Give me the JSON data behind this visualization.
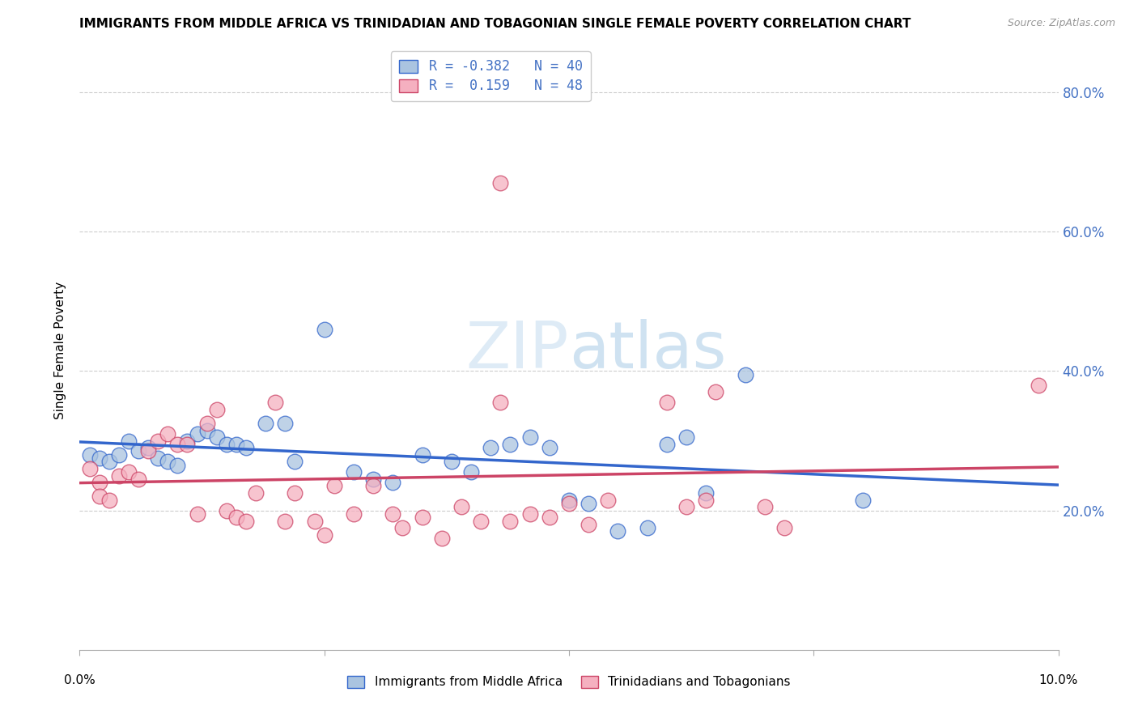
{
  "title": "IMMIGRANTS FROM MIDDLE AFRICA VS TRINIDADIAN AND TOBAGONIAN SINGLE FEMALE POVERTY CORRELATION CHART",
  "source": "Source: ZipAtlas.com",
  "ylabel": "Single Female Poverty",
  "legend_label1": "Immigrants from Middle Africa",
  "legend_label2": "Trinidadians and Tobagonians",
  "r1": "-0.382",
  "n1": "40",
  "r2": "0.159",
  "n2": "48",
  "xlim": [
    0.0,
    0.1
  ],
  "ylim": [
    0.0,
    0.86
  ],
  "yticks": [
    0.2,
    0.4,
    0.6,
    0.8
  ],
  "ytick_labels": [
    "20.0%",
    "40.0%",
    "60.0%",
    "80.0%"
  ],
  "color_blue": "#aac4e0",
  "color_pink": "#f5b0c0",
  "line_blue": "#3366cc",
  "line_pink": "#cc4466",
  "blue_points": [
    [
      0.001,
      0.28
    ],
    [
      0.002,
      0.275
    ],
    [
      0.003,
      0.27
    ],
    [
      0.004,
      0.28
    ],
    [
      0.005,
      0.3
    ],
    [
      0.006,
      0.285
    ],
    [
      0.007,
      0.29
    ],
    [
      0.008,
      0.275
    ],
    [
      0.009,
      0.27
    ],
    [
      0.01,
      0.265
    ],
    [
      0.011,
      0.3
    ],
    [
      0.012,
      0.31
    ],
    [
      0.013,
      0.315
    ],
    [
      0.014,
      0.305
    ],
    [
      0.015,
      0.295
    ],
    [
      0.016,
      0.295
    ],
    [
      0.017,
      0.29
    ],
    [
      0.019,
      0.325
    ],
    [
      0.021,
      0.325
    ],
    [
      0.022,
      0.27
    ],
    [
      0.025,
      0.46
    ],
    [
      0.028,
      0.255
    ],
    [
      0.03,
      0.245
    ],
    [
      0.032,
      0.24
    ],
    [
      0.035,
      0.28
    ],
    [
      0.038,
      0.27
    ],
    [
      0.04,
      0.255
    ],
    [
      0.042,
      0.29
    ],
    [
      0.044,
      0.295
    ],
    [
      0.046,
      0.305
    ],
    [
      0.048,
      0.29
    ],
    [
      0.05,
      0.215
    ],
    [
      0.052,
      0.21
    ],
    [
      0.055,
      0.17
    ],
    [
      0.058,
      0.175
    ],
    [
      0.06,
      0.295
    ],
    [
      0.062,
      0.305
    ],
    [
      0.064,
      0.225
    ],
    [
      0.068,
      0.395
    ],
    [
      0.08,
      0.215
    ]
  ],
  "pink_points": [
    [
      0.001,
      0.26
    ],
    [
      0.002,
      0.24
    ],
    [
      0.002,
      0.22
    ],
    [
      0.003,
      0.215
    ],
    [
      0.004,
      0.25
    ],
    [
      0.005,
      0.255
    ],
    [
      0.006,
      0.245
    ],
    [
      0.007,
      0.285
    ],
    [
      0.008,
      0.3
    ],
    [
      0.009,
      0.31
    ],
    [
      0.01,
      0.295
    ],
    [
      0.011,
      0.295
    ],
    [
      0.012,
      0.195
    ],
    [
      0.013,
      0.325
    ],
    [
      0.014,
      0.345
    ],
    [
      0.015,
      0.2
    ],
    [
      0.016,
      0.19
    ],
    [
      0.017,
      0.185
    ],
    [
      0.018,
      0.225
    ],
    [
      0.02,
      0.355
    ],
    [
      0.021,
      0.185
    ],
    [
      0.022,
      0.225
    ],
    [
      0.024,
      0.185
    ],
    [
      0.025,
      0.165
    ],
    [
      0.026,
      0.235
    ],
    [
      0.028,
      0.195
    ],
    [
      0.03,
      0.235
    ],
    [
      0.032,
      0.195
    ],
    [
      0.033,
      0.175
    ],
    [
      0.035,
      0.19
    ],
    [
      0.037,
      0.16
    ],
    [
      0.039,
      0.205
    ],
    [
      0.041,
      0.185
    ],
    [
      0.043,
      0.355
    ],
    [
      0.044,
      0.185
    ],
    [
      0.046,
      0.195
    ],
    [
      0.048,
      0.19
    ],
    [
      0.043,
      0.67
    ],
    [
      0.05,
      0.21
    ],
    [
      0.052,
      0.18
    ],
    [
      0.054,
      0.215
    ],
    [
      0.06,
      0.355
    ],
    [
      0.062,
      0.205
    ],
    [
      0.064,
      0.215
    ],
    [
      0.065,
      0.37
    ],
    [
      0.07,
      0.205
    ],
    [
      0.072,
      0.175
    ],
    [
      0.098,
      0.38
    ]
  ]
}
